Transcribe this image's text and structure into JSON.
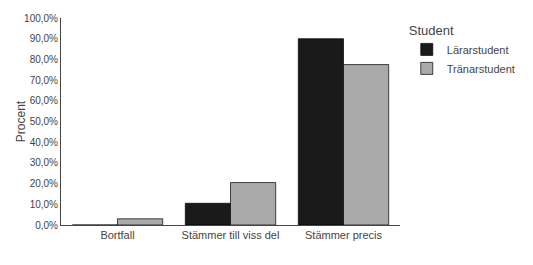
{
  "chart_data": {
    "type": "bar",
    "categories": [
      "Bortfall",
      "Stämmer till viss del",
      "Stämmer precis"
    ],
    "series": [
      {
        "name": "Lärarstudent",
        "color": "#1a1a1a",
        "values": [
          0.0,
          10.5,
          90.0
        ]
      },
      {
        "name": "Tränarstudent",
        "color": "#aaaaaa",
        "values": [
          3.0,
          20.5,
          77.5
        ]
      }
    ],
    "ylabel": "Procent",
    "ylim": [
      0,
      100
    ],
    "yticks": [
      {
        "value": 0,
        "label": "0,0%"
      },
      {
        "value": 10,
        "label": "10,0%"
      },
      {
        "value": 20,
        "label": "20,0%"
      },
      {
        "value": 30,
        "label": "30,0%"
      },
      {
        "value": 40,
        "label": "40,0%"
      },
      {
        "value": 50,
        "label": "50,0%"
      },
      {
        "value": 60,
        "label": "60,0%"
      },
      {
        "value": 70,
        "label": "70,0%"
      },
      {
        "value": 80,
        "label": "80,0%"
      },
      {
        "value": 90,
        "label": "90,0%"
      },
      {
        "value": 100,
        "label": "100,0%"
      }
    ],
    "legend_title": "Student",
    "legend": "right",
    "grid": false
  }
}
